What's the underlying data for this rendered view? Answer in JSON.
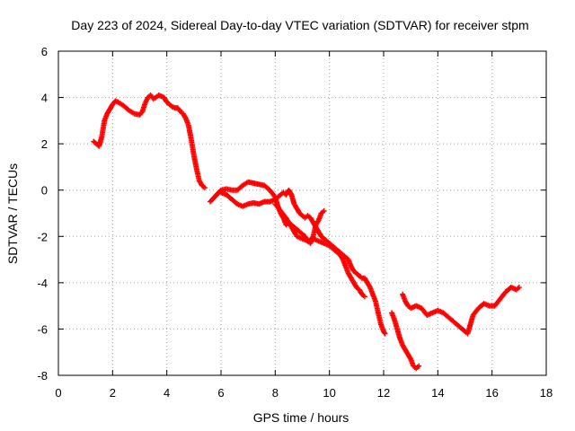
{
  "chart_data": {
    "type": "scatter",
    "title": "Day 223 of 2024, Sidereal Day-to-day VTEC variation (SDTVAR) for receiver stpm",
    "xlabel": "GPS time / hours",
    "ylabel": "SDTVAR / TECUs",
    "xlim": [
      0,
      18
    ],
    "ylim": [
      -8,
      6
    ],
    "xticks": [
      "0",
      "2",
      "4",
      "6",
      "8",
      "10",
      "12",
      "14",
      "16",
      "18"
    ],
    "yticks": [
      "-8",
      "-6",
      "-4",
      "-2",
      "0",
      "2",
      "4",
      "6"
    ],
    "grid": true,
    "marker": "plus",
    "color": "#ff0000",
    "series": [
      {
        "name": "stpm",
        "segments": [
          [
            [
              1.3,
              2.1
            ],
            [
              1.5,
              1.9
            ],
            [
              1.6,
              2.3
            ],
            [
              1.7,
              3.0
            ],
            [
              1.8,
              3.3
            ],
            [
              1.9,
              3.5
            ],
            [
              2.0,
              3.7
            ],
            [
              2.1,
              3.85
            ],
            [
              2.2,
              3.8
            ],
            [
              2.4,
              3.65
            ],
            [
              2.6,
              3.45
            ],
            [
              2.8,
              3.3
            ],
            [
              3.0,
              3.25
            ],
            [
              3.1,
              3.4
            ],
            [
              3.2,
              3.75
            ],
            [
              3.3,
              4.0
            ],
            [
              3.4,
              4.1
            ],
            [
              3.5,
              3.95
            ],
            [
              3.6,
              4.0
            ],
            [
              3.7,
              4.1
            ],
            [
              3.8,
              4.05
            ],
            [
              3.9,
              4.0
            ],
            [
              4.0,
              3.8
            ],
            [
              4.1,
              3.7
            ],
            [
              4.2,
              3.6
            ],
            [
              4.3,
              3.55
            ],
            [
              4.4,
              3.55
            ],
            [
              4.5,
              3.4
            ],
            [
              4.6,
              3.3
            ],
            [
              4.7,
              3.1
            ],
            [
              4.8,
              2.8
            ],
            [
              4.9,
              2.2
            ],
            [
              5.0,
              1.5
            ],
            [
              5.1,
              0.9
            ],
            [
              5.2,
              0.4
            ],
            [
              5.3,
              0.2
            ],
            [
              5.4,
              0.1
            ]
          ],
          [
            [
              5.6,
              -0.5
            ],
            [
              5.8,
              -0.25
            ],
            [
              6.0,
              0.0
            ],
            [
              6.2,
              0.05
            ],
            [
              6.4,
              0.0
            ],
            [
              6.6,
              0.0
            ],
            [
              6.8,
              0.2
            ],
            [
              7.0,
              0.35
            ],
            [
              7.2,
              0.3
            ],
            [
              7.4,
              0.25
            ],
            [
              7.6,
              0.2
            ],
            [
              7.8,
              0.0
            ],
            [
              8.0,
              -0.3
            ],
            [
              8.1,
              -0.7
            ],
            [
              8.2,
              -1.0
            ],
            [
              8.3,
              -1.2
            ],
            [
              8.4,
              -1.5
            ],
            [
              8.5,
              -1.4
            ],
            [
              8.6,
              -1.5
            ],
            [
              8.7,
              -1.6
            ],
            [
              8.9,
              -1.8
            ],
            [
              9.0,
              -1.9
            ],
            [
              9.1,
              -2.0
            ],
            [
              9.2,
              -2.2
            ],
            [
              9.3,
              -2.3
            ],
            [
              9.4,
              -2.0
            ],
            [
              9.5,
              -1.5
            ],
            [
              9.6,
              -1.3
            ],
            [
              9.7,
              -1.0
            ],
            [
              9.8,
              -0.9
            ]
          ],
          [
            [
              6.0,
              -0.1
            ],
            [
              6.2,
              -0.2
            ],
            [
              6.4,
              -0.4
            ],
            [
              6.6,
              -0.6
            ],
            [
              6.8,
              -0.7
            ],
            [
              7.0,
              -0.6
            ],
            [
              7.2,
              -0.55
            ],
            [
              7.4,
              -0.6
            ],
            [
              7.6,
              -0.5
            ],
            [
              7.8,
              -0.5
            ],
            [
              8.0,
              -0.4
            ],
            [
              8.1,
              -0.3
            ],
            [
              8.2,
              -0.2
            ],
            [
              8.3,
              -0.1
            ],
            [
              8.4,
              -0.2
            ],
            [
              8.5,
              0.0
            ],
            [
              8.6,
              -0.2
            ],
            [
              8.7,
              -0.6
            ],
            [
              8.8,
              -0.8
            ],
            [
              8.9,
              -1.0
            ],
            [
              9.0,
              -1.1
            ],
            [
              9.1,
              -1.2
            ],
            [
              9.2,
              -1.1
            ],
            [
              9.3,
              -1.2
            ],
            [
              9.4,
              -1.4
            ],
            [
              9.5,
              -1.6
            ],
            [
              9.6,
              -1.8
            ],
            [
              9.7,
              -2.0
            ],
            [
              9.8,
              -2.1
            ],
            [
              9.9,
              -2.2
            ],
            [
              10.0,
              -2.3
            ],
            [
              10.1,
              -2.4
            ],
            [
              10.2,
              -2.5
            ],
            [
              10.3,
              -2.6
            ],
            [
              10.4,
              -2.7
            ],
            [
              10.5,
              -2.8
            ],
            [
              10.6,
              -2.9
            ],
            [
              10.7,
              -3.0
            ],
            [
              10.8,
              -3.3
            ],
            [
              10.9,
              -3.5
            ],
            [
              11.0,
              -3.6
            ],
            [
              11.1,
              -3.7
            ],
            [
              11.2,
              -3.8
            ],
            [
              11.3,
              -3.8
            ],
            [
              11.4,
              -4.0
            ],
            [
              11.5,
              -4.2
            ],
            [
              11.6,
              -4.5
            ],
            [
              11.7,
              -4.8
            ],
            [
              11.8,
              -5.3
            ],
            [
              11.9,
              -5.8
            ],
            [
              12.0,
              -6.1
            ],
            [
              12.05,
              -6.2
            ]
          ],
          [
            [
              8.0,
              -0.6
            ],
            [
              8.2,
              -0.9
            ],
            [
              8.4,
              -1.2
            ],
            [
              8.6,
              -1.6
            ],
            [
              8.8,
              -2.0
            ],
            [
              9.0,
              -2.1
            ],
            [
              9.2,
              -2.2
            ],
            [
              9.4,
              -2.1
            ],
            [
              9.6,
              -2.2
            ],
            [
              9.8,
              -2.3
            ],
            [
              10.0,
              -2.4
            ],
            [
              10.2,
              -2.6
            ],
            [
              10.4,
              -2.8
            ],
            [
              10.5,
              -3.0
            ],
            [
              10.6,
              -3.3
            ],
            [
              10.7,
              -3.6
            ],
            [
              10.8,
              -3.8
            ],
            [
              10.9,
              -4.0
            ],
            [
              11.0,
              -4.2
            ],
            [
              11.1,
              -4.3
            ],
            [
              11.2,
              -4.5
            ],
            [
              11.3,
              -4.6
            ]
          ],
          [
            [
              12.3,
              -5.3
            ],
            [
              12.4,
              -5.6
            ],
            [
              12.5,
              -6.0
            ],
            [
              12.6,
              -6.4
            ],
            [
              12.7,
              -6.7
            ],
            [
              12.8,
              -6.9
            ],
            [
              12.9,
              -7.1
            ],
            [
              13.0,
              -7.3
            ],
            [
              13.1,
              -7.6
            ],
            [
              13.2,
              -7.7
            ],
            [
              13.3,
              -7.6
            ]
          ],
          [
            [
              12.7,
              -4.5
            ],
            [
              12.8,
              -4.8
            ],
            [
              12.9,
              -5.0
            ],
            [
              13.0,
              -5.1
            ],
            [
              13.2,
              -5.0
            ],
            [
              13.4,
              -5.1
            ],
            [
              13.6,
              -5.4
            ],
            [
              13.8,
              -5.3
            ],
            [
              14.0,
              -5.2
            ],
            [
              14.2,
              -5.3
            ],
            [
              14.4,
              -5.5
            ],
            [
              14.6,
              -5.7
            ],
            [
              14.8,
              -5.9
            ],
            [
              15.0,
              -6.1
            ],
            [
              15.1,
              -6.2
            ],
            [
              15.2,
              -5.8
            ],
            [
              15.3,
              -5.4
            ],
            [
              15.5,
              -5.1
            ],
            [
              15.7,
              -4.9
            ],
            [
              15.9,
              -5.0
            ],
            [
              16.1,
              -5.0
            ],
            [
              16.3,
              -4.7
            ],
            [
              16.5,
              -4.4
            ],
            [
              16.7,
              -4.2
            ],
            [
              16.9,
              -4.3
            ],
            [
              17.0,
              -4.2
            ]
          ]
        ]
      }
    ]
  }
}
